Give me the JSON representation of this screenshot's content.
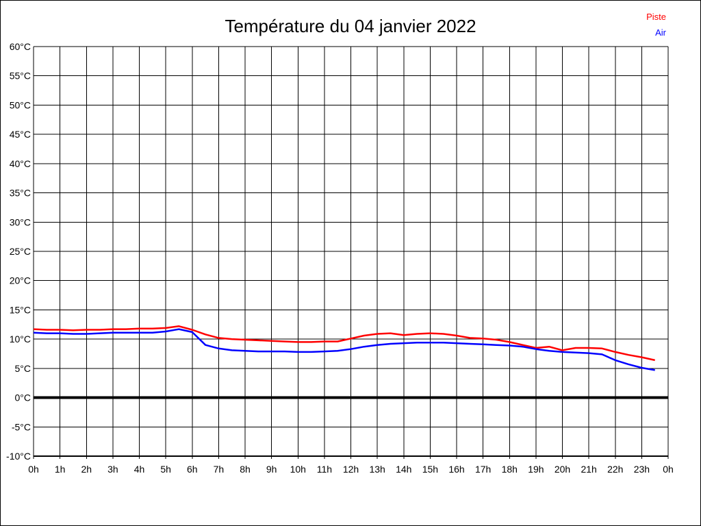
{
  "page": {
    "title": "Température du 04 janvier 2022"
  },
  "legend": [
    {
      "label": "Piste",
      "color": "#ff0000"
    },
    {
      "label": "Air",
      "color": "#0000ff"
    }
  ],
  "chart_data": {
    "type": "line",
    "title": "Température du 04 janvier 2022",
    "xlabel": "",
    "ylabel": "",
    "xlim": [
      0,
      24
    ],
    "ylim": [
      -10,
      60
    ],
    "y_step": 5,
    "grid": true,
    "zero_line": true,
    "legend_position": "top-right",
    "x_tick_labels": [
      "0h",
      "1h",
      "2h",
      "3h",
      "4h",
      "5h",
      "6h",
      "7h",
      "8h",
      "9h",
      "10h",
      "11h",
      "12h",
      "13h",
      "14h",
      "15h",
      "16h",
      "17h",
      "18h",
      "19h",
      "20h",
      "21h",
      "22h",
      "23h",
      "0h"
    ],
    "y_tick_labels": [
      "60°C",
      "55°C",
      "50°C",
      "45°C",
      "40°C",
      "35°C",
      "30°C",
      "25°C",
      "20°C",
      "15°C",
      "10°C",
      "5°C",
      "0°C",
      "-5°C",
      "-10°C"
    ],
    "x": [
      0,
      0.5,
      1,
      1.5,
      2,
      2.5,
      3,
      3.5,
      4,
      4.5,
      5,
      5.5,
      6,
      6.5,
      7,
      7.5,
      8,
      8.5,
      9,
      9.5,
      10,
      10.5,
      11,
      11.5,
      12,
      12.5,
      13,
      13.5,
      14,
      14.5,
      15,
      15.5,
      16,
      16.5,
      17,
      17.5,
      18,
      18.5,
      19,
      19.5,
      20,
      20.5,
      21,
      21.5,
      22,
      22.5,
      23,
      23.5
    ],
    "series": [
      {
        "name": "Piste",
        "color": "#ff0000",
        "values": [
          11.7,
          11.6,
          11.6,
          11.5,
          11.6,
          11.6,
          11.7,
          11.7,
          11.8,
          11.8,
          11.9,
          12.2,
          11.6,
          10.8,
          10.2,
          10.0,
          9.9,
          9.8,
          9.7,
          9.6,
          9.5,
          9.5,
          9.6,
          9.6,
          10.1,
          10.6,
          10.9,
          11.0,
          10.7,
          10.9,
          11.0,
          10.9,
          10.6,
          10.2,
          10.1,
          9.9,
          9.5,
          9.0,
          8.5,
          8.7,
          8.1,
          8.5,
          8.5,
          8.4,
          7.8,
          7.3,
          6.9,
          6.4
        ]
      },
      {
        "name": "Air",
        "color": "#0000ff",
        "values": [
          11.1,
          11.0,
          11.0,
          10.9,
          10.9,
          11.0,
          11.1,
          11.1,
          11.1,
          11.1,
          11.3,
          11.7,
          11.2,
          9.0,
          8.4,
          8.1,
          8.0,
          7.9,
          7.9,
          7.9,
          7.8,
          7.8,
          7.9,
          8.0,
          8.3,
          8.7,
          9.0,
          9.2,
          9.3,
          9.4,
          9.4,
          9.4,
          9.3,
          9.2,
          9.1,
          9.0,
          8.9,
          8.7,
          8.3,
          8.0,
          7.8,
          7.7,
          7.6,
          7.4,
          6.4,
          5.7,
          5.1,
          4.7
        ]
      }
    ]
  }
}
